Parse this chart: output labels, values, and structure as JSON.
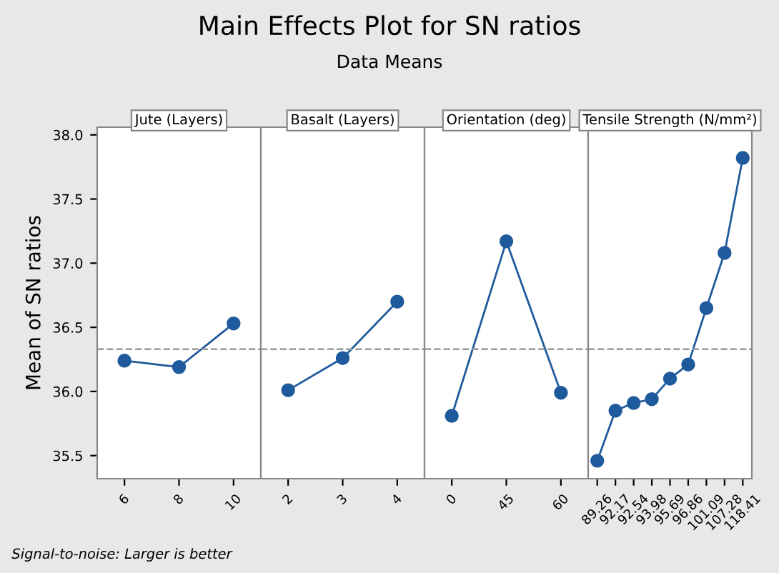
{
  "chart_data": [
    {
      "type": "line",
      "title": "Jute (Layers)",
      "ylabel": "Mean of SN ratios",
      "categories": [
        "6",
        "8",
        "10"
      ],
      "series": [
        {
          "color": "#1f5a9c",
          "values": [
            36.24,
            36.19,
            36.53
          ]
        }
      ],
      "ylim": [
        35.32,
        38.06
      ],
      "yticks": [
        35.5,
        {
          "value": 36,
          "label": "36.0"
        },
        36.5,
        {
          "value": 37,
          "label": "37.0"
        },
        37.5,
        {
          "value": 38,
          "label": "38.0"
        }
      ],
      "marker": "circle",
      "line_style": "solid",
      "grid": false,
      "ref_lines": [
        {
          "axis": "y",
          "value": 36.33,
          "color": "#999999",
          "line_style": "dashed"
        }
      ],
      "annotations": [
        "Main Effects Plot for SN ratios",
        "Data Means",
        "Signal-to-noise: Larger is better"
      ]
    },
    {
      "type": "line",
      "title": "Basalt (Layers)",
      "categories": [
        "2",
        "3",
        "4"
      ],
      "series": [
        {
          "color": "#1f5a9c",
          "values": [
            36.01,
            36.26,
            36.7
          ]
        }
      ],
      "ylim": [
        35.32,
        38.06
      ],
      "tick_labels": "x",
      "marker": "circle",
      "line_style": "solid",
      "grid": false,
      "ref_lines": [
        {
          "axis": "y",
          "value": 36.33,
          "color": "#999999",
          "line_style": "dashed"
        }
      ]
    },
    {
      "type": "line",
      "title": "Orientation (deg)",
      "categories": [
        "0",
        "45",
        "60"
      ],
      "series": [
        {
          "color": "#1f5a9c",
          "values": [
            35.81,
            37.17,
            35.99
          ]
        }
      ],
      "ylim": [
        35.32,
        38.06
      ],
      "tick_labels": "x",
      "marker": "circle",
      "line_style": "solid",
      "grid": false,
      "ref_lines": [
        {
          "axis": "y",
          "value": 36.33,
          "color": "#999999",
          "line_style": "dashed"
        }
      ]
    },
    {
      "type": "line",
      "title": "Tensile Strength (N/mm²)",
      "categories": [
        "89.26",
        "92.17",
        "92.54",
        "93.98",
        "95.69",
        "96.86",
        "101.09",
        "107.28",
        "118.41"
      ],
      "series": [
        {
          "color": "#1f5a9c",
          "values": [
            35.46,
            35.85,
            35.91,
            35.94,
            36.1,
            36.21,
            36.65,
            37.08,
            37.82
          ]
        }
      ],
      "ylim": [
        35.32,
        38.06
      ],
      "tick_labels": "x",
      "marker": "circle",
      "line_style": "solid",
      "grid": false,
      "ref_lines": [
        {
          "axis": "y",
          "value": 36.33,
          "color": "#999999",
          "line_style": "dashed"
        }
      ]
    }
  ]
}
